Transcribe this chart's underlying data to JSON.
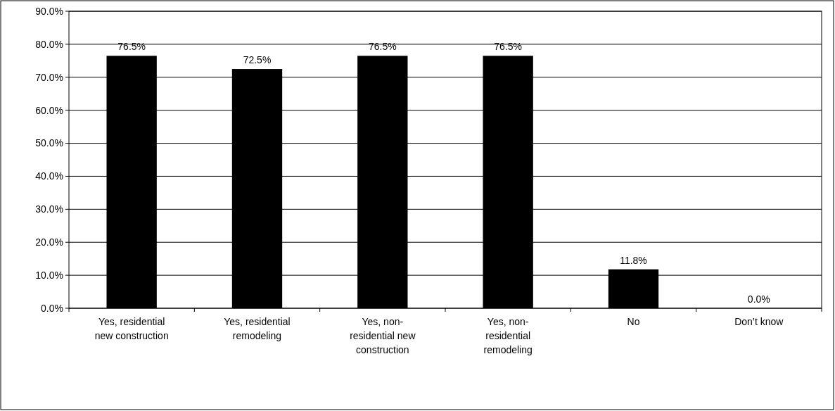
{
  "chart_data": {
    "type": "bar",
    "categories": [
      "Yes, residential new construction",
      "Yes, residential remodeling",
      "Yes, non-residential new construction",
      "Yes, non-residential remodeling",
      "No",
      "Don’t know"
    ],
    "values": [
      76.5,
      72.5,
      76.5,
      76.5,
      11.8,
      0.0
    ],
    "color": "#000000",
    "ylim": [
      0,
      90
    ],
    "yticks": [
      {
        "value": 0,
        "label": "0.0%"
      },
      {
        "value": 10,
        "label": "10.0%"
      },
      {
        "value": 20,
        "label": "20.0%"
      },
      {
        "value": 30,
        "label": "30.0%"
      },
      {
        "value": 40,
        "label": "40.0%"
      },
      {
        "value": 50,
        "label": "50.0%"
      },
      {
        "value": 60,
        "label": "60.0%"
      },
      {
        "value": 70,
        "label": "70.0%"
      },
      {
        "value": 80,
        "label": "80.0%"
      },
      {
        "value": 90,
        "label": "90.0%"
      }
    ],
    "value_labels": [
      "76.5%",
      "72.5%",
      "76.5%",
      "76.5%",
      "11.8%",
      "0.0%"
    ],
    "grid": "y"
  }
}
